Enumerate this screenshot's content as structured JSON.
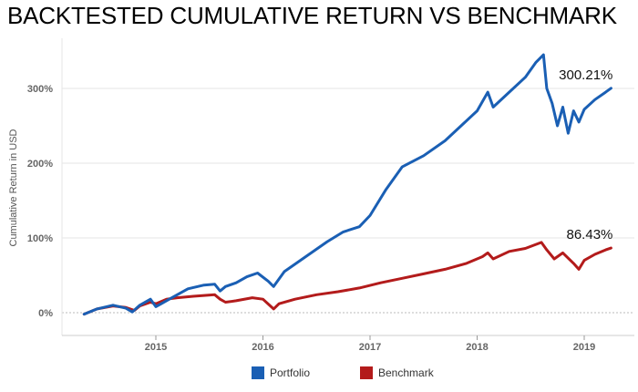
{
  "title": "BACKTESTED CUMULATIVE RETURN VS BENCHMARK",
  "colors": {
    "portfolio": "#1a5fb4",
    "benchmark": "#b31b1b",
    "grid": "#e6e6e6",
    "tick": "#666666"
  },
  "chart_data": {
    "type": "line",
    "title": "BACKTESTED CUMULATIVE RETURN VS BENCHMARK",
    "xlabel": "",
    "ylabel": "Cumulative Return in USD",
    "xlim": [
      2014.33,
      2019.25
    ],
    "ylim": [
      -15,
      360
    ],
    "yticks": [
      0,
      100,
      200,
      300
    ],
    "ytick_labels": [
      "0%",
      "100%",
      "200%",
      "300%"
    ],
    "xticks": [
      2015,
      2016,
      2017,
      2018,
      2019
    ],
    "xtick_labels": [
      "2015",
      "2016",
      "2017",
      "2018",
      "2019"
    ],
    "grid": true,
    "legend": "bottom",
    "series": [
      {
        "name": "Portfolio",
        "end_label": "300.21%",
        "points": [
          [
            2014.33,
            -2
          ],
          [
            2014.45,
            5
          ],
          [
            2014.6,
            10
          ],
          [
            2014.72,
            6
          ],
          [
            2014.78,
            1
          ],
          [
            2014.85,
            10
          ],
          [
            2014.95,
            18
          ],
          [
            2015.0,
            8
          ],
          [
            2015.05,
            12
          ],
          [
            2015.15,
            20
          ],
          [
            2015.3,
            32
          ],
          [
            2015.45,
            37
          ],
          [
            2015.55,
            38
          ],
          [
            2015.6,
            29
          ],
          [
            2015.65,
            35
          ],
          [
            2015.75,
            40
          ],
          [
            2015.85,
            48
          ],
          [
            2015.95,
            53
          ],
          [
            2016.05,
            42
          ],
          [
            2016.1,
            35
          ],
          [
            2016.2,
            55
          ],
          [
            2016.4,
            75
          ],
          [
            2016.6,
            95
          ],
          [
            2016.75,
            108
          ],
          [
            2016.9,
            115
          ],
          [
            2017.0,
            130
          ],
          [
            2017.15,
            165
          ],
          [
            2017.3,
            195
          ],
          [
            2017.5,
            210
          ],
          [
            2017.7,
            230
          ],
          [
            2017.85,
            250
          ],
          [
            2018.0,
            270
          ],
          [
            2018.1,
            295
          ],
          [
            2018.15,
            275
          ],
          [
            2018.3,
            295
          ],
          [
            2018.45,
            315
          ],
          [
            2018.55,
            335
          ],
          [
            2018.62,
            345
          ],
          [
            2018.65,
            300
          ],
          [
            2018.7,
            280
          ],
          [
            2018.75,
            250
          ],
          [
            2018.8,
            275
          ],
          [
            2018.85,
            240
          ],
          [
            2018.9,
            270
          ],
          [
            2018.95,
            255
          ],
          [
            2019.0,
            272
          ],
          [
            2019.1,
            285
          ],
          [
            2019.2,
            295
          ],
          [
            2019.25,
            300.21
          ]
        ]
      },
      {
        "name": "Benchmark",
        "end_label": "86.43%",
        "points": [
          [
            2014.33,
            -2
          ],
          [
            2014.45,
            5
          ],
          [
            2014.6,
            9
          ],
          [
            2014.72,
            7
          ],
          [
            2014.8,
            3
          ],
          [
            2014.85,
            9
          ],
          [
            2014.95,
            14
          ],
          [
            2015.0,
            12
          ],
          [
            2015.1,
            18
          ],
          [
            2015.2,
            20
          ],
          [
            2015.35,
            22
          ],
          [
            2015.55,
            24
          ],
          [
            2015.6,
            18
          ],
          [
            2015.65,
            14
          ],
          [
            2015.75,
            16
          ],
          [
            2015.9,
            20
          ],
          [
            2016.0,
            18
          ],
          [
            2016.1,
            5
          ],
          [
            2016.15,
            12
          ],
          [
            2016.3,
            18
          ],
          [
            2016.5,
            24
          ],
          [
            2016.7,
            28
          ],
          [
            2016.9,
            33
          ],
          [
            2017.1,
            40
          ],
          [
            2017.3,
            46
          ],
          [
            2017.5,
            52
          ],
          [
            2017.7,
            58
          ],
          [
            2017.9,
            66
          ],
          [
            2018.05,
            75
          ],
          [
            2018.1,
            80
          ],
          [
            2018.15,
            72
          ],
          [
            2018.3,
            82
          ],
          [
            2018.45,
            86
          ],
          [
            2018.6,
            94
          ],
          [
            2018.65,
            84
          ],
          [
            2018.72,
            72
          ],
          [
            2018.8,
            80
          ],
          [
            2018.9,
            66
          ],
          [
            2018.95,
            58
          ],
          [
            2019.0,
            70
          ],
          [
            2019.1,
            78
          ],
          [
            2019.2,
            84
          ],
          [
            2019.25,
            86.43
          ]
        ]
      }
    ]
  }
}
